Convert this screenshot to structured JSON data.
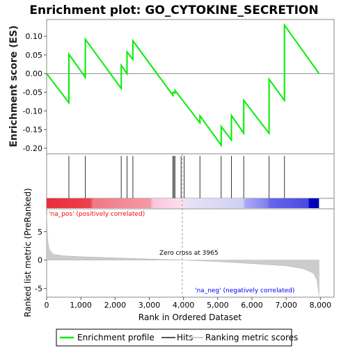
{
  "chart_data": {
    "type": "line",
    "title": "Enrichment plot: GO_CYTOKINE_SECRETION",
    "top_panel": {
      "ylabel": "Enrichment score (ES)",
      "ylim": [
        -0.215,
        0.145
      ],
      "yticks": [
        -0.2,
        -0.15,
        -0.1,
        -0.05,
        0.0,
        0.05,
        0.1
      ],
      "ytick_labels": [
        "-0.20",
        "-0.15",
        "-0.10",
        "-0.05",
        "0.00",
        "0.05",
        "0.10"
      ],
      "series": [
        {
          "name": "Enrichment profile",
          "color": "#00ee00",
          "x": [
            0,
            650,
            650,
            1130,
            1130,
            2180,
            2180,
            2350,
            2350,
            2520,
            2520,
            3690,
            3690,
            3750,
            3750,
            4480,
            4480,
            5100,
            5100,
            5400,
            5400,
            5760,
            5760,
            6500,
            6500,
            6950,
            6950,
            7960
          ],
          "y": [
            0.0,
            -0.078,
            0.052,
            -0.01,
            0.092,
            -0.04,
            0.022,
            0.0,
            0.058,
            0.038,
            0.088,
            -0.058,
            -0.05,
            -0.052,
            -0.045,
            -0.132,
            -0.113,
            -0.192,
            -0.142,
            -0.178,
            -0.112,
            -0.16,
            -0.072,
            -0.16,
            -0.015,
            -0.072,
            0.13,
            0.0
          ]
        }
      ]
    },
    "hits": {
      "name": "Hits",
      "positions": [
        650,
        1130,
        2180,
        2350,
        2520,
        3690,
        3720,
        3750,
        3930,
        4020,
        4480,
        5100,
        5400,
        5760,
        6500,
        6950
      ]
    },
    "bottom_panel": {
      "ylabel": "Ranked list metric (PreRanked)",
      "xlabel": "Rank in Ordered Dataset",
      "ylim": [
        -6.5,
        9
      ],
      "yticks": [
        -5,
        0,
        5
      ],
      "ytick_labels": [
        "-5",
        "0",
        "5"
      ],
      "xlim": [
        0,
        8400
      ],
      "xticks": [
        0,
        1000,
        2000,
        3000,
        4000,
        5000,
        6000,
        7000,
        8000
      ],
      "xtick_labels": [
        "0",
        "1,000",
        "2,000",
        "3,000",
        "4,000",
        "5,000",
        "6,000",
        "7,000",
        "8,000"
      ],
      "series": {
        "name": "Ranking metric scores",
        "x": [
          0,
          30,
          80,
          200,
          500,
          1000,
          2000,
          3000,
          3965,
          5000,
          6000,
          7000,
          7500,
          7800,
          7900,
          7960
        ],
        "y": [
          8.0,
          3.5,
          1.8,
          1.0,
          0.75,
          0.6,
          0.4,
          0.2,
          0.0,
          -0.25,
          -0.6,
          -1.0,
          -1.5,
          -2.3,
          -3.5,
          -6.2
        ]
      },
      "zero_cross": 3965,
      "zero_cross_label": "Zero cross at 3965",
      "pos_label": "'na_pos' (positively correlated)",
      "neg_label": "'na_neg' (negatively correlated)"
    },
    "legend": {
      "position": "bottom",
      "items": [
        {
          "label": "Enrichment profile",
          "color": "#00ee00"
        },
        {
          "label": "Hits",
          "color": "#555555"
        },
        {
          "label": "Ranking metric scores",
          "color": "#cccccc"
        }
      ]
    },
    "colors": {
      "pos_text": "#ff0000",
      "neg_text": "#0000ff",
      "heatmap_stops": [
        "#ea2d3b",
        "#f07885",
        "#fac4de",
        "#dcd8f3",
        "#b9b9f3",
        "#6f6ff0",
        "#3030e0",
        "#0000c0"
      ]
    }
  }
}
